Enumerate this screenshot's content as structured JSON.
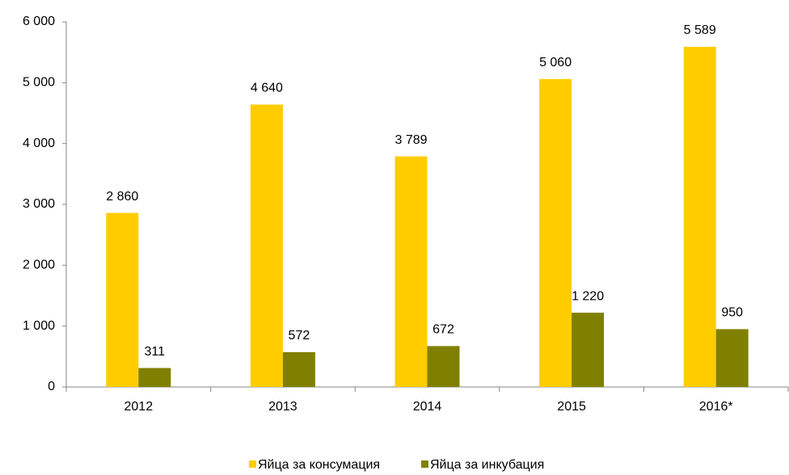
{
  "chart_data": {
    "type": "bar",
    "categories": [
      "2012",
      "2013",
      "2014",
      "2015",
      "2016*"
    ],
    "series": [
      {
        "name": "Яйца за консумация",
        "color": "#ffcc00",
        "values": [
          2860,
          4640,
          3789,
          5060,
          5589
        ],
        "value_labels": [
          "2 860",
          "4 640",
          "3 789",
          "5 060",
          "5 589"
        ]
      },
      {
        "name": "Яйца  за инкубация",
        "color": "#808000",
        "values": [
          311,
          572,
          672,
          1220,
          950
        ],
        "value_labels": [
          "311",
          "572",
          "672",
          "1 220",
          "950"
        ]
      }
    ],
    "ylim": [
      0,
      6000
    ],
    "yticks": [
      0,
      {
        "value": 1000,
        "label": "1 000"
      },
      {
        "value": 2000,
        "label": "2 000"
      },
      {
        "value": 3000,
        "label": "3 000"
      },
      {
        "value": 4000,
        "label": "4 000"
      },
      {
        "value": 5000,
        "label": "5 000"
      },
      {
        "value": 6000,
        "label": "6 000"
      }
    ],
    "legend": "bottom"
  }
}
